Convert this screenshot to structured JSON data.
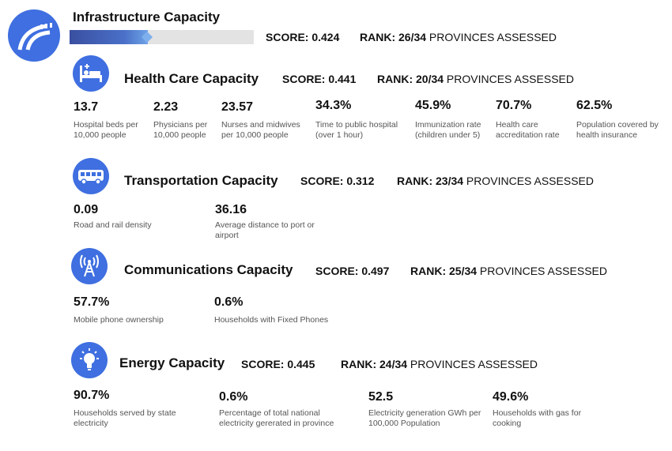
{
  "header": {
    "title": "Infrastructure Capacity",
    "score": "SCORE: 0.424",
    "rank_label": "RANK: 26/34",
    "rank_suffix": "PROVINCES ASSESSED",
    "progress": 0.424,
    "icon": "road-icon"
  },
  "sections": {
    "health": {
      "title": "Health Care Capacity",
      "score": "SCORE: 0.441",
      "rank_label": "RANK: 20/34",
      "rank_suffix": "PROVINCES ASSESSED",
      "icon": "hospital-bed-icon",
      "metrics": [
        {
          "value": "13.7",
          "label": "Hospital beds per 10,000 people"
        },
        {
          "value": "2.23",
          "label": "Physicians per 10,000 people"
        },
        {
          "value": "23.57",
          "label": "Nurses and midwives per 10,000 people"
        },
        {
          "value": "34.3%",
          "label": "Time to public hospital (over 1 hour)"
        },
        {
          "value": "45.9%",
          "label": "Immunization rate (children under 5)"
        },
        {
          "value": "70.7%",
          "label": "Health care accreditation rate"
        },
        {
          "value": "62.5%",
          "label": "Population covered by health insurance"
        }
      ]
    },
    "transport": {
      "title": "Transportation Capacity",
      "score": "SCORE: 0.312",
      "rank_label": "RANK: 23/34",
      "rank_suffix": "PROVINCES ASSESSED",
      "icon": "bus-icon",
      "metrics": [
        {
          "value": "0.09",
          "label": "Road and rail density"
        },
        {
          "value": "36.16",
          "label": "Average distance to port or airport"
        }
      ]
    },
    "comms": {
      "title": "Communications Capacity",
      "score": "SCORE: 0.497",
      "rank_label": "RANK: 25/34",
      "rank_suffix": "PROVINCES ASSESSED",
      "icon": "antenna-tower-icon",
      "metrics": [
        {
          "value": "57.7%",
          "label": "Mobile phone ownership"
        },
        {
          "value": "0.6%",
          "label": "Households with Fixed Phones"
        }
      ]
    },
    "energy": {
      "title": "Energy Capacity",
      "score": "SCORE: 0.445",
      "rank_label": "RANK: 24/34",
      "rank_suffix": "PROVINCES ASSESSED",
      "icon": "lightbulb-icon",
      "metrics": [
        {
          "value": "90.7%",
          "label": "Households served by state electricity"
        },
        {
          "value": "0.6%",
          "label": "Percentage of total national electricity gererated in province"
        },
        {
          "value": "52.5",
          "label": "Electricity generation GWh per 100,000 Population"
        },
        {
          "value": "49.6%",
          "label": "Households with gas for cooking"
        }
      ]
    }
  }
}
